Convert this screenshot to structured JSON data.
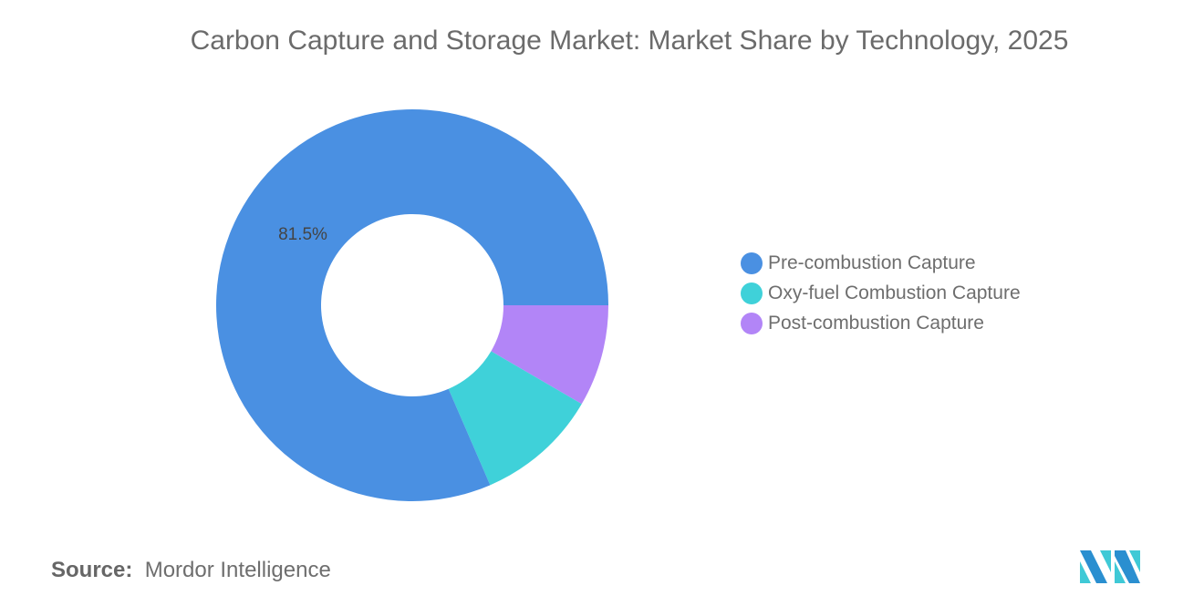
{
  "chart_data": {
    "type": "pie",
    "donut": true,
    "title": "Carbon Capture and Storage Market: Market Share by Technology, 2025",
    "categories": [
      "Pre-combustion Capture",
      "Oxy-fuel Combustion Capture",
      "Post-combustion Capture"
    ],
    "values": [
      81.5,
      10.1,
      8.4
    ],
    "unit": "%",
    "colors": [
      "#4a90e2",
      "#3fd1d9",
      "#b285f7"
    ],
    "data_labels": [
      {
        "category": "Pre-combustion Capture",
        "text": "81.5%"
      }
    ],
    "legend_position": "right"
  },
  "source": {
    "label": "Source:",
    "value": "Mordor Intelligence"
  },
  "logo": {
    "name": "mordor-intelligence-logo",
    "colors": [
      "#2a8fd0",
      "#3fc9d6"
    ]
  }
}
